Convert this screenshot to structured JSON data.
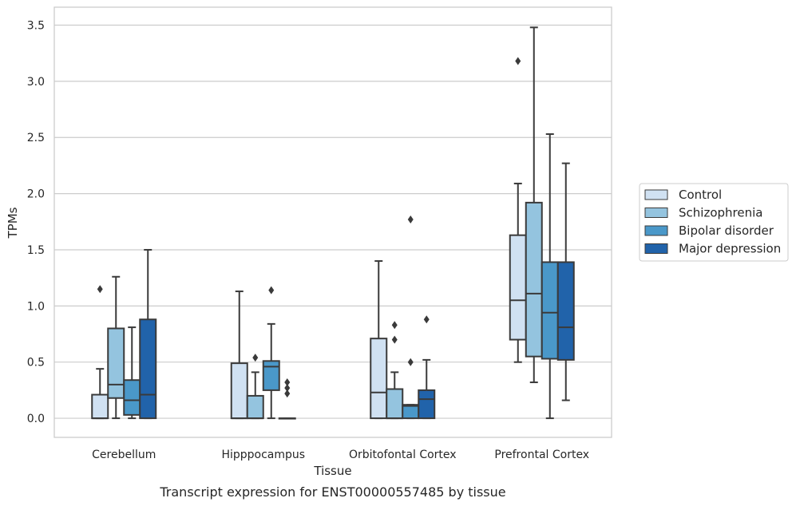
{
  "chart_data": {
    "type": "box",
    "xlabel": "Tissue",
    "ylabel": "TPMs",
    "caption": "Transcript expression for ENST00000557485 by tissue",
    "categories": [
      "Cerebellum",
      "Hipppocampus",
      "Orbitofontal Cortex",
      "Prefrontal Cortex"
    ],
    "ylim": [
      -0.17,
      3.66
    ],
    "yticks": [
      "0.0",
      "0.5",
      "1.0",
      "1.5",
      "2.0",
      "2.5",
      "3.0",
      "3.5"
    ],
    "grid": true,
    "legend_placement": "right",
    "series": [
      {
        "name": "Control",
        "color": "#d0e1f2",
        "boxes": [
          {
            "whisker_low": 0.0,
            "q1": 0.0,
            "median": 0.0,
            "q3": 0.21,
            "whisker_high": 0.44,
            "outliers": [
              1.15
            ]
          },
          {
            "whisker_low": 0.0,
            "q1": 0.0,
            "median": 0.0,
            "q3": 0.49,
            "whisker_high": 1.13,
            "outliers": []
          },
          {
            "whisker_low": 0.0,
            "q1": 0.0,
            "median": 0.23,
            "q3": 0.71,
            "whisker_high": 1.4,
            "outliers": []
          },
          {
            "whisker_low": 0.5,
            "q1": 0.7,
            "median": 1.05,
            "q3": 1.63,
            "whisker_high": 2.09,
            "outliers": [
              3.18
            ]
          }
        ]
      },
      {
        "name": "Schizophrenia",
        "color": "#94c4df",
        "boxes": [
          {
            "whisker_low": 0.0,
            "q1": 0.18,
            "median": 0.3,
            "q3": 0.8,
            "whisker_high": 1.26,
            "outliers": []
          },
          {
            "whisker_low": 0.0,
            "q1": 0.0,
            "median": 0.0,
            "q3": 0.2,
            "whisker_high": 0.41,
            "outliers": [
              0.54
            ]
          },
          {
            "whisker_low": 0.0,
            "q1": 0.0,
            "median": 0.0,
            "q3": 0.26,
            "whisker_high": 0.41,
            "outliers": [
              0.7,
              0.83
            ]
          },
          {
            "whisker_low": 0.32,
            "q1": 0.55,
            "median": 1.11,
            "q3": 1.92,
            "whisker_high": 3.48,
            "outliers": []
          }
        ]
      },
      {
        "name": "Bipolar disorder",
        "color": "#4a98c9",
        "boxes": [
          {
            "whisker_low": 0.0,
            "q1": 0.03,
            "median": 0.16,
            "q3": 0.34,
            "whisker_high": 0.81,
            "outliers": []
          },
          {
            "whisker_low": 0.0,
            "q1": 0.25,
            "median": 0.46,
            "q3": 0.51,
            "whisker_high": 0.84,
            "outliers": [
              1.14
            ]
          },
          {
            "whisker_low": 0.0,
            "q1": 0.0,
            "median": 0.11,
            "q3": 0.12,
            "whisker_high": 0.12,
            "outliers": [
              0.5,
              1.77
            ]
          },
          {
            "whisker_low": 0.0,
            "q1": 0.53,
            "median": 0.94,
            "q3": 1.39,
            "whisker_high": 2.53,
            "outliers": []
          }
        ]
      },
      {
        "name": "Major depression",
        "color": "#2163aa",
        "boxes": [
          {
            "whisker_low": 0.0,
            "q1": 0.0,
            "median": 0.21,
            "q3": 0.88,
            "whisker_high": 1.5,
            "outliers": []
          },
          {
            "whisker_low": 0.0,
            "q1": 0.0,
            "median": 0.0,
            "q3": 0.0,
            "whisker_high": 0.0,
            "outliers": [
              0.22,
              0.27,
              0.32
            ]
          },
          {
            "whisker_low": 0.0,
            "q1": 0.0,
            "median": 0.17,
            "q3": 0.25,
            "whisker_high": 0.52,
            "outliers": [
              0.88
            ]
          },
          {
            "whisker_low": 0.16,
            "q1": 0.52,
            "median": 0.81,
            "q3": 1.39,
            "whisker_high": 2.27,
            "outliers": []
          }
        ]
      }
    ]
  }
}
